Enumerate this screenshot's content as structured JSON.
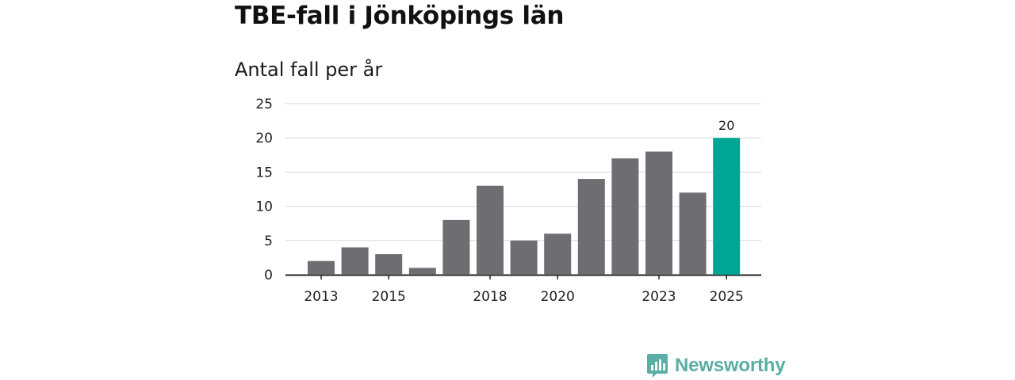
{
  "title": "TBE-fall i Jönköpings län",
  "subtitle": "Antal fall per år",
  "brand": "Newsworthy",
  "colors": {
    "bar": "#6e6d72",
    "highlight": "#00a596",
    "grid": "#d9d9d9",
    "axis": "#222222",
    "brand": "#5aaea4"
  },
  "chart_data": {
    "type": "bar",
    "categories": [
      "2013",
      "2014",
      "2015",
      "2016",
      "2017",
      "2018",
      "2019",
      "2020",
      "2021",
      "2022",
      "2023",
      "2024",
      "2025"
    ],
    "values": [
      2,
      4,
      3,
      1,
      8,
      13,
      5,
      6,
      14,
      17,
      18,
      12,
      20
    ],
    "highlight_index": 12,
    "data_labels": [
      {
        "index": 12,
        "text": "20"
      }
    ],
    "x_tick_labels": [
      "2013",
      "2015",
      "2018",
      "2020",
      "2023",
      "2025"
    ],
    "y_ticks": [
      0,
      5,
      10,
      15,
      20,
      25
    ],
    "ylim": [
      0,
      25
    ],
    "title": "TBE-fall i Jönköpings län",
    "subtitle": "Antal fall per år",
    "xlabel": "",
    "ylabel": "",
    "grid": true,
    "legend": "none"
  }
}
